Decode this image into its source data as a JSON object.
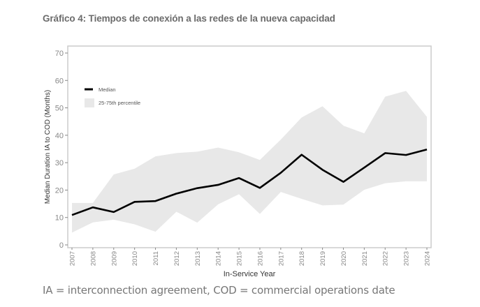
{
  "title": "Gráfico 4: Tiempos de conexión a las redes de la nueva capacidad",
  "footnote": "IA = interconnection agreement, COD = commercial operations date",
  "chart_data": {
    "type": "line",
    "title": "Gráfico 4: Tiempos de conexión a las redes de la nueva capacidad",
    "xlabel": "In-Service Year",
    "ylabel": "Median Duration IA to COD (Months)",
    "x": [
      "2007",
      "2008",
      "2009",
      "2010",
      "2011",
      "2012",
      "2013",
      "2014",
      "2015",
      "2016",
      "2017",
      "2018",
      "2019",
      "2020",
      "2021",
      "2022",
      "2023",
      "2024"
    ],
    "ylim": [
      0,
      70
    ],
    "yticks": [
      0,
      10,
      20,
      30,
      40,
      50,
      60,
      70
    ],
    "grid": false,
    "legend_position": "top-left",
    "series": [
      {
        "name": "Median",
        "kind": "line",
        "color": "#000000",
        "values": [
          10.9,
          13.7,
          12.0,
          15.7,
          16.0,
          18.7,
          20.7,
          21.9,
          24.4,
          20.8,
          26.3,
          32.9,
          27.4,
          23.0,
          28.2,
          33.5,
          32.8,
          34.8
        ]
      },
      {
        "name": "25-75th percentile",
        "kind": "band",
        "color": "#e8e8e8",
        "lower": [
          4.5,
          8.2,
          9.2,
          7.5,
          4.8,
          12.1,
          8.1,
          14.8,
          18.5,
          11.3,
          19.3,
          16.8,
          14.4,
          14.7,
          20.1,
          22.5,
          23.2,
          23.2
        ],
        "upper": [
          15.3,
          15.3,
          25.7,
          27.8,
          32.3,
          33.5,
          34.0,
          35.5,
          33.8,
          31.0,
          38.4,
          46.5,
          50.6,
          43.5,
          40.7,
          54.1,
          56.2,
          46.7
        ]
      }
    ]
  }
}
